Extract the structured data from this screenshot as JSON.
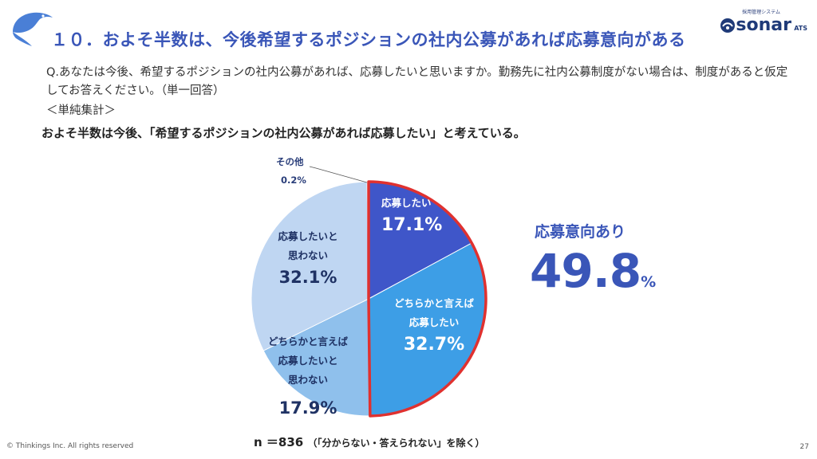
{
  "header": {
    "title": "１０．およそ半数は、今後希望するポジションの社内公募があれば応募意向がある",
    "brand_tag": "採用管理システム",
    "brand_name": "sonar",
    "brand_suffix": "ATS"
  },
  "question": {
    "text": "Q.あなたは今後、希望するポジションの社内公募があれば、応募したいと思いますか。勤務先に社内公募制度がない場合は、制度があると仮定してお答えください。（単一回答）",
    "section_label": "＜単純集計＞",
    "summary": "およそ半数は今後、「希望するポジションの社内公募があれば応募したい」と考えている。"
  },
  "chart_data": {
    "type": "pie",
    "slices": [
      {
        "label_lines": [
          "応募したい"
        ],
        "value": 17.1,
        "value_label": "17.1%",
        "color": "#3f56c9",
        "text_color": "#ffffff"
      },
      {
        "label_lines": [
          "どちらかと言えば",
          "応募したい"
        ],
        "value": 32.7,
        "value_label": "32.7%",
        "color": "#3d9ee6",
        "text_color": "#ffffff"
      },
      {
        "label_lines": [
          "どちらかと言えば",
          "応募したいと",
          "思わない"
        ],
        "value": 17.9,
        "value_label": "17.9%",
        "color": "#8fc0ec",
        "text_color": "#1f3264"
      },
      {
        "label_lines": [
          "応募したいと",
          "思わない"
        ],
        "value": 32.1,
        "value_label": "32.1%",
        "color": "#bfd6f2",
        "text_color": "#1f3264"
      },
      {
        "label_lines": [
          "その他"
        ],
        "value": 0.2,
        "value_label": "0.2%",
        "color": "#dbe6f5",
        "text_color": "#2a3e7a"
      }
    ],
    "highlight": {
      "label": "応募意向あり",
      "value": "49.8",
      "unit": "%",
      "outline_color": "#e0312f"
    },
    "sample_note": {
      "n": "n ＝836",
      "note": "（「分からない・答えられない」を除く）"
    }
  },
  "footer": {
    "copyright": "© Thinkings Inc. All rights reserved",
    "page": "27"
  }
}
